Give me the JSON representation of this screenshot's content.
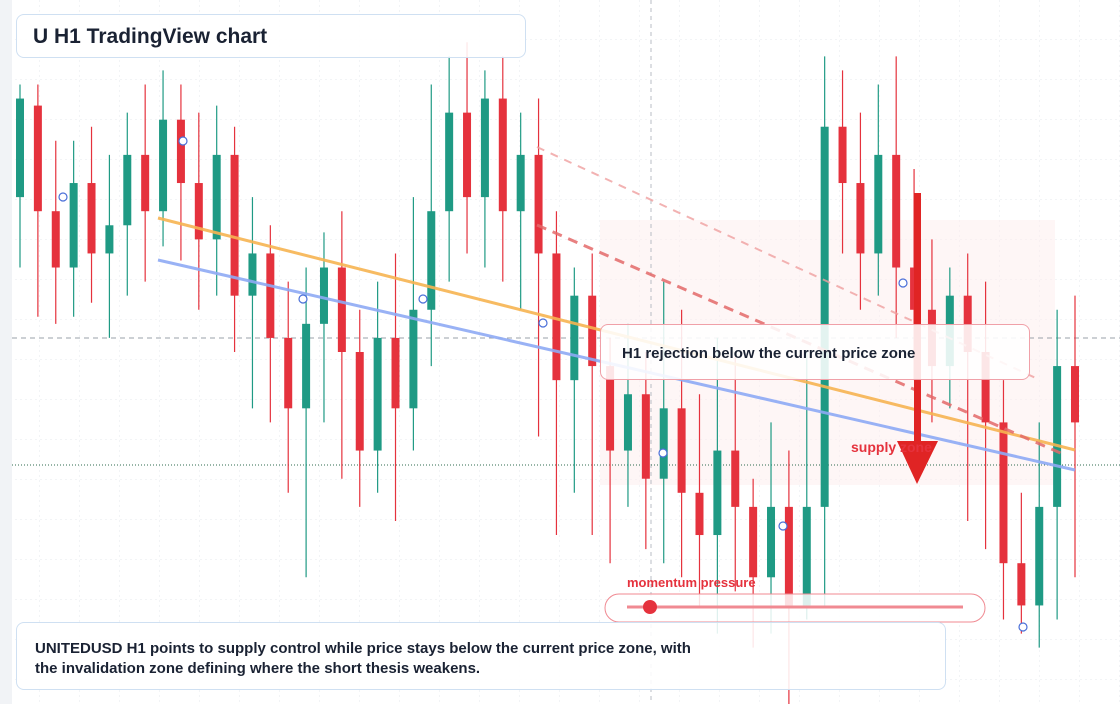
{
  "chart_data": {
    "type": "candlestick",
    "title": "U H1 TradingView chart",
    "annotation": "H1 rejection below the current price zone",
    "zone_label": "supply zone",
    "indicator_label": "momentum pressure",
    "description": "UNITEDUSD H1 points to supply control while price stays below the current price zone, with the invalidation zone defining where the short thesis weakens.",
    "up_color": "#1f9a84",
    "down_color": "#e5323d",
    "ylim": [
      0,
      100
    ],
    "open": [
      72,
      85,
      70,
      62,
      74,
      64,
      68,
      78,
      70,
      83,
      74,
      66,
      78,
      58,
      64,
      52,
      42,
      54,
      62,
      50,
      36,
      52,
      42,
      56,
      70,
      84,
      72,
      86,
      70,
      78,
      64,
      46,
      58,
      48,
      36,
      44,
      32,
      42,
      30,
      24,
      36,
      28,
      18,
      28,
      14,
      28,
      82,
      74,
      64,
      78,
      62,
      56,
      48,
      58,
      50,
      40,
      20,
      14,
      28,
      48
    ],
    "high": [
      88,
      88,
      80,
      80,
      82,
      78,
      84,
      88,
      90,
      88,
      84,
      85,
      82,
      72,
      68,
      60,
      62,
      67,
      70,
      56,
      60,
      64,
      72,
      88,
      92,
      94,
      90,
      92,
      84,
      86,
      70,
      62,
      64,
      52,
      54,
      50,
      60,
      56,
      44,
      52,
      50,
      32,
      40,
      36,
      50,
      92,
      90,
      84,
      88,
      92,
      76,
      66,
      62,
      64,
      60,
      46,
      30,
      40,
      56,
      58
    ],
    "low": [
      62,
      55,
      54,
      55,
      57,
      52,
      58,
      60,
      65,
      63,
      56,
      58,
      50,
      42,
      40,
      30,
      18,
      40,
      32,
      28,
      30,
      26,
      36,
      48,
      60,
      64,
      62,
      60,
      56,
      38,
      24,
      30,
      24,
      20,
      28,
      22,
      20,
      18,
      14,
      10,
      16,
      8,
      10,
      0,
      12,
      14,
      64,
      56,
      58,
      52,
      46,
      40,
      42,
      26,
      22,
      12,
      10,
      8,
      12,
      18
    ],
    "close": [
      86,
      70,
      62,
      74,
      64,
      68,
      78,
      70,
      83,
      74,
      66,
      78,
      58,
      64,
      52,
      42,
      54,
      62,
      50,
      36,
      52,
      42,
      56,
      70,
      84,
      72,
      86,
      70,
      78,
      64,
      46,
      58,
      48,
      36,
      44,
      32,
      42,
      30,
      24,
      36,
      28,
      18,
      28,
      14,
      28,
      82,
      74,
      64,
      78,
      62,
      56,
      48,
      58,
      50,
      40,
      20,
      14,
      28,
      48,
      40
    ]
  }
}
